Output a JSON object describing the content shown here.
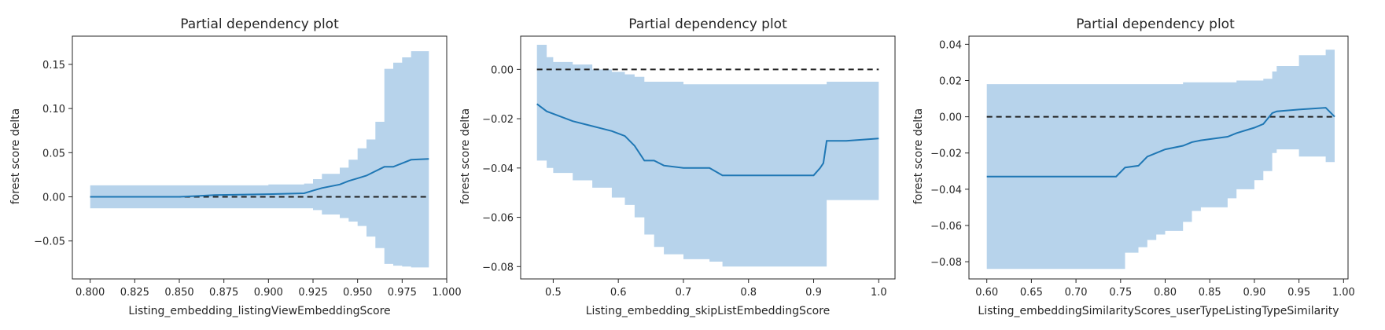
{
  "chart_data": [
    {
      "type": "line",
      "title": "Partial dependency plot",
      "xlabel": "Listing_embedding_listingViewEmbeddingScore",
      "ylabel": "forest score delta",
      "xlim": [
        0.79,
        1.0
      ],
      "ylim": [
        -0.093,
        0.182
      ],
      "xticks": [
        0.8,
        0.825,
        0.85,
        0.875,
        0.9,
        0.925,
        0.95,
        0.975,
        1.0
      ],
      "xtick_labels": [
        "0.800",
        "0.825",
        "0.850",
        "0.875",
        "0.900",
        "0.925",
        "0.950",
        "0.975",
        "1.000"
      ],
      "yticks": [
        -0.05,
        0.0,
        0.05,
        0.1,
        0.15
      ],
      "ytick_labels": [
        "−0.05",
        "0.00",
        "0.05",
        "0.10",
        "0.15"
      ],
      "reference_y": 0,
      "series": [
        {
          "x": [
            0.8,
            0.85,
            0.87,
            0.9,
            0.92,
            0.925,
            0.93,
            0.94,
            0.945,
            0.95,
            0.955,
            0.96,
            0.965,
            0.97,
            0.975,
            0.98,
            0.99
          ],
          "y": [
            0.0,
            0.0,
            0.002,
            0.003,
            0.004,
            0.007,
            0.01,
            0.014,
            0.018,
            0.021,
            0.024,
            0.029,
            0.034,
            0.034,
            0.038,
            0.042,
            0.043
          ],
          "lower": [
            -0.013,
            -0.013,
            -0.013,
            -0.013,
            -0.013,
            -0.015,
            -0.02,
            -0.024,
            -0.028,
            -0.033,
            -0.045,
            -0.058,
            -0.076,
            -0.078,
            -0.079,
            -0.08,
            -0.081
          ],
          "upper": [
            0.013,
            0.013,
            0.013,
            0.014,
            0.015,
            0.02,
            0.026,
            0.033,
            0.042,
            0.055,
            0.065,
            0.085,
            0.145,
            0.152,
            0.158,
            0.165,
            0.168
          ]
        }
      ]
    },
    {
      "type": "line",
      "title": "Partial dependency plot",
      "xlabel": "Listing_embedding_skipListEmbeddingScore",
      "ylabel": "forest score delta",
      "xlim": [
        0.45,
        1.025
      ],
      "ylim": [
        -0.085,
        0.0135
      ],
      "xticks": [
        0.5,
        0.6,
        0.7,
        0.8,
        0.9,
        1.0
      ],
      "xtick_labels": [
        "0.5",
        "0.6",
        "0.7",
        "0.8",
        "0.9",
        "1.0"
      ],
      "yticks": [
        -0.08,
        -0.06,
        -0.04,
        -0.02,
        0.0
      ],
      "ytick_labels": [
        "−0.08",
        "−0.06",
        "−0.04",
        "−0.02",
        "0.00"
      ],
      "reference_y": 0,
      "series": [
        {
          "x": [
            0.475,
            0.49,
            0.5,
            0.53,
            0.56,
            0.59,
            0.61,
            0.625,
            0.64,
            0.655,
            0.67,
            0.7,
            0.74,
            0.76,
            0.85,
            0.9,
            0.91,
            0.915,
            0.92,
            0.95,
            1.0
          ],
          "y": [
            -0.014,
            -0.017,
            -0.018,
            -0.021,
            -0.023,
            -0.025,
            -0.027,
            -0.031,
            -0.037,
            -0.037,
            -0.039,
            -0.04,
            -0.04,
            -0.043,
            -0.043,
            -0.043,
            -0.04,
            -0.038,
            -0.029,
            -0.029,
            -0.028
          ],
          "lower": [
            -0.037,
            -0.04,
            -0.042,
            -0.045,
            -0.048,
            -0.052,
            -0.055,
            -0.06,
            -0.067,
            -0.072,
            -0.075,
            -0.077,
            -0.078,
            -0.08,
            -0.08,
            -0.08,
            -0.08,
            -0.08,
            -0.053,
            -0.053,
            -0.052
          ],
          "upper": [
            0.01,
            0.005,
            0.003,
            0.002,
            0.0,
            -0.001,
            -0.002,
            -0.003,
            -0.005,
            -0.005,
            -0.005,
            -0.006,
            -0.006,
            -0.006,
            -0.006,
            -0.006,
            -0.006,
            -0.006,
            -0.005,
            -0.005,
            -0.005
          ]
        }
      ]
    },
    {
      "type": "line",
      "title": "Partial dependency plot",
      "xlabel": "Listing_embeddingSimilarityScores_userTypeListingTypeSimilarity",
      "ylabel": "forest score delta",
      "xlim": [
        0.58,
        1.005
      ],
      "ylim": [
        -0.0895,
        0.0445
      ],
      "xticks": [
        0.6,
        0.65,
        0.7,
        0.75,
        0.8,
        0.85,
        0.9,
        0.95,
        1.0
      ],
      "xtick_labels": [
        "0.60",
        "0.65",
        "0.70",
        "0.75",
        "0.80",
        "0.85",
        "0.90",
        "0.95",
        "1.00"
      ],
      "yticks": [
        -0.08,
        -0.06,
        -0.04,
        -0.02,
        0.0,
        0.02,
        0.04
      ],
      "ytick_labels": [
        "−0.08",
        "−0.06",
        "−0.04",
        "−0.02",
        "0.00",
        "0.02",
        "0.04"
      ],
      "reference_y": 0,
      "series": [
        {
          "x": [
            0.6,
            0.7,
            0.745,
            0.755,
            0.77,
            0.78,
            0.79,
            0.8,
            0.82,
            0.83,
            0.84,
            0.87,
            0.88,
            0.9,
            0.91,
            0.92,
            0.925,
            0.95,
            0.98,
            0.99
          ],
          "y": [
            -0.033,
            -0.033,
            -0.033,
            -0.028,
            -0.027,
            -0.022,
            -0.02,
            -0.018,
            -0.016,
            -0.014,
            -0.013,
            -0.011,
            -0.009,
            -0.006,
            -0.004,
            0.002,
            0.003,
            0.004,
            0.005,
            0.0
          ],
          "lower": [
            -0.084,
            -0.084,
            -0.084,
            -0.075,
            -0.072,
            -0.068,
            -0.065,
            -0.063,
            -0.058,
            -0.052,
            -0.05,
            -0.045,
            -0.04,
            -0.035,
            -0.03,
            -0.02,
            -0.018,
            -0.022,
            -0.025,
            -0.036
          ],
          "upper": [
            0.018,
            0.018,
            0.018,
            0.018,
            0.018,
            0.018,
            0.018,
            0.018,
            0.019,
            0.019,
            0.019,
            0.019,
            0.02,
            0.02,
            0.021,
            0.025,
            0.028,
            0.034,
            0.037,
            0.037
          ]
        }
      ]
    }
  ],
  "colors": {
    "line": "#1f77b4",
    "band": "#b7d3eb",
    "reference": "#222222",
    "axis": "#262626"
  }
}
